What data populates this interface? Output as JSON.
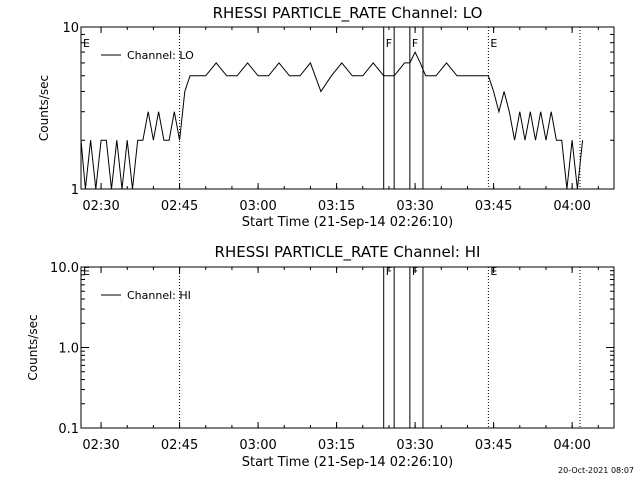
{
  "chart_data": [
    {
      "type": "line",
      "title": "RHESSI PARTICLE_RATE Channel: LO",
      "xlabel": "Start Time (21-Sep-14 02:26:10)",
      "ylabel": "Counts/sec",
      "yscale": "log",
      "ylim": [
        1,
        10
      ],
      "y_ticks": [
        "1",
        "10"
      ],
      "xlim": [
        "02:26:10",
        "04:08:00"
      ],
      "x_ticks": [
        "02:30",
        "02:45",
        "03:00",
        "03:15",
        "03:30",
        "03:45",
        "04:00"
      ],
      "legend": "Channel: LO",
      "legend_position": "top-left",
      "markers": [
        {
          "label": "E",
          "time": "02:26:10",
          "style": "none"
        },
        {
          "label": "",
          "time": "02:45:00",
          "style": "dotted"
        },
        {
          "label": "F",
          "time": "03:24:00",
          "style": "solid"
        },
        {
          "label": "",
          "time": "03:26:00",
          "style": "solid"
        },
        {
          "label": "F",
          "time": "03:29:00",
          "style": "solid"
        },
        {
          "label": "",
          "time": "03:31:30",
          "style": "solid"
        },
        {
          "label": "E",
          "time": "03:44:00",
          "style": "dotted"
        },
        {
          "label": "",
          "time": "04:01:30",
          "style": "dotted"
        }
      ],
      "series": [
        {
          "name": "Channel: LO",
          "x": [
            "02:26",
            "02:27",
            "02:28",
            "02:29",
            "02:30",
            "02:31",
            "02:32",
            "02:33",
            "02:34",
            "02:35",
            "02:36",
            "02:37",
            "02:38",
            "02:39",
            "02:40",
            "02:41",
            "02:42",
            "02:43",
            "02:44",
            "02:45",
            "02:46",
            "02:47",
            "02:48",
            "02:50",
            "02:52",
            "02:54",
            "02:56",
            "02:58",
            "03:00",
            "03:02",
            "03:04",
            "03:06",
            "03:08",
            "03:10",
            "03:12",
            "03:14",
            "03:16",
            "03:18",
            "03:20",
            "03:22",
            "03:24",
            "03:26",
            "03:28",
            "03:29",
            "03:30",
            "03:31",
            "03:32",
            "03:34",
            "03:36",
            "03:38",
            "03:40",
            "03:42",
            "03:43",
            "03:44",
            "03:45",
            "03:46",
            "03:47",
            "03:48",
            "03:49",
            "03:50",
            "03:51",
            "03:52",
            "03:53",
            "03:54",
            "03:55",
            "03:56",
            "03:57",
            "03:58",
            "03:59",
            "04:00",
            "04:01",
            "04:02"
          ],
          "y": [
            2,
            1,
            2,
            1,
            2,
            2,
            1,
            2,
            1,
            2,
            1,
            2,
            2,
            3,
            2,
            3,
            2,
            2,
            3,
            2,
            4,
            5,
            5,
            5,
            6,
            5,
            5,
            6,
            5,
            5,
            6,
            5,
            5,
            6,
            4,
            5,
            6,
            5,
            5,
            6,
            5,
            5,
            6,
            6,
            7,
            6,
            5,
            5,
            6,
            5,
            5,
            5,
            5,
            5,
            4,
            3,
            4,
            3,
            2,
            3,
            2,
            3,
            2,
            3,
            2,
            3,
            2,
            2,
            1,
            2,
            1,
            2
          ]
        }
      ]
    },
    {
      "type": "line",
      "title": "RHESSI PARTICLE_RATE Channel: HI",
      "xlabel": "Start Time (21-Sep-14 02:26:10)",
      "ylabel": "Counts/sec",
      "yscale": "log",
      "ylim": [
        0.1,
        10
      ],
      "y_ticks": [
        "0.1",
        "1.0",
        "10.0"
      ],
      "xlim": [
        "02:26:10",
        "04:08:00"
      ],
      "x_ticks": [
        "02:30",
        "02:45",
        "03:00",
        "03:15",
        "03:30",
        "03:45",
        "04:00"
      ],
      "legend": "Channel: HI",
      "legend_position": "top-left",
      "markers": [
        {
          "label": "E",
          "time": "02:26:10",
          "style": "none"
        },
        {
          "label": "",
          "time": "02:45:00",
          "style": "dotted"
        },
        {
          "label": "F",
          "time": "03:24:00",
          "style": "solid"
        },
        {
          "label": "",
          "time": "03:26:00",
          "style": "solid"
        },
        {
          "label": "F",
          "time": "03:29:00",
          "style": "solid"
        },
        {
          "label": "",
          "time": "03:31:30",
          "style": "solid"
        },
        {
          "label": "E",
          "time": "03:44:00",
          "style": "dotted"
        },
        {
          "label": "",
          "time": "04:01:30",
          "style": "dotted"
        }
      ],
      "series": [
        {
          "name": "Channel: HI",
          "x": [],
          "y": []
        }
      ]
    }
  ],
  "footer": {
    "timestamp": "20-Oct-2021 08:07"
  }
}
